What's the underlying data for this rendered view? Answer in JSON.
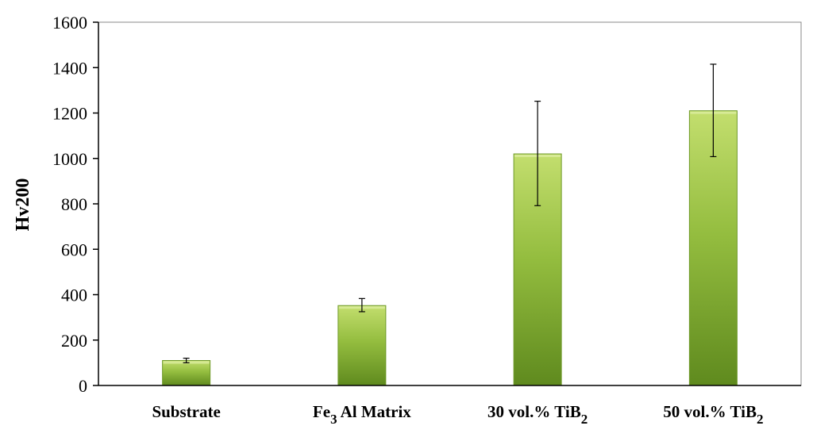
{
  "chart_data": {
    "type": "bar",
    "ylabel": "Hv200",
    "xlabel": "",
    "title": "",
    "ylim": [
      0,
      1600
    ],
    "y_ticks": [
      "0",
      "200",
      "400",
      "600",
      "800",
      "1000",
      "1200",
      "1400",
      "1600"
    ],
    "categories": [
      {
        "base": "Substrate",
        "sub": "",
        "tail": ""
      },
      {
        "base": "Fe",
        "sub": "3",
        "tail": "Al Matrix"
      },
      {
        "base": "30 vol.% TiB",
        "sub": "2",
        "tail": ""
      },
      {
        "base": "50 vol.% TiB",
        "sub": "2",
        "tail": ""
      }
    ],
    "values": [
      110,
      352,
      1020,
      1210
    ],
    "error_low": [
      100,
      325,
      792,
      1008
    ],
    "error_high": [
      120,
      383,
      1252,
      1415
    ],
    "grid": false,
    "legend": "none",
    "colors": {
      "bar_light": "#c3de6e",
      "bar_mid": "#94bd3f",
      "bar_dark": "#5f8a1e",
      "bar_edge": "#6f9a2a",
      "axis": "#000000",
      "frame": "#888888"
    }
  }
}
